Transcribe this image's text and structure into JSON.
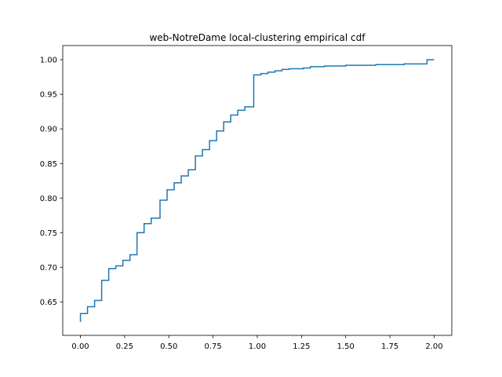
{
  "chart_data": {
    "type": "line",
    "drawstyle": "steps-post",
    "title": "web-NotreDame local-clustering empirical cdf",
    "xlabel": "",
    "ylabel": "",
    "xlim": [
      -0.1,
      2.1
    ],
    "ylim": [
      0.6015,
      1.0205
    ],
    "x_ticks": [
      0.0,
      0.25,
      0.5,
      0.75,
      1.0,
      1.25,
      1.5,
      1.75,
      2.0
    ],
    "x_tick_labels": [
      "0.00",
      "0.25",
      "0.50",
      "0.75",
      "1.00",
      "1.25",
      "1.50",
      "1.75",
      "2.00"
    ],
    "y_ticks": [
      0.65,
      0.7,
      0.75,
      0.8,
      0.85,
      0.9,
      0.95,
      1.0
    ],
    "y_tick_labels": [
      "0.65",
      "0.70",
      "0.75",
      "0.80",
      "0.85",
      "0.90",
      "0.95",
      "1.00"
    ],
    "grid": false,
    "legend": "none",
    "color": "#1f77b4",
    "series": [
      {
        "x": [
          0.0,
          0.0,
          0.04,
          0.08,
          0.12,
          0.16,
          0.2,
          0.24,
          0.28,
          0.32,
          0.36,
          0.4,
          0.45,
          0.49,
          0.53,
          0.57,
          0.61,
          0.65,
          0.69,
          0.73,
          0.77,
          0.81,
          0.85,
          0.89,
          0.93,
          0.98,
          1.02,
          1.06,
          1.1,
          1.14,
          1.18,
          1.26,
          1.3,
          1.38,
          1.5,
          1.67,
          1.83,
          1.96,
          2.0
        ],
        "y": [
          0.621,
          0.633,
          0.643,
          0.652,
          0.681,
          0.698,
          0.702,
          0.71,
          0.718,
          0.75,
          0.763,
          0.771,
          0.797,
          0.812,
          0.822,
          0.832,
          0.841,
          0.861,
          0.87,
          0.883,
          0.897,
          0.91,
          0.92,
          0.927,
          0.932,
          0.978,
          0.98,
          0.982,
          0.984,
          0.986,
          0.987,
          0.988,
          0.99,
          0.991,
          0.992,
          0.993,
          0.994,
          1.0,
          1.0
        ]
      }
    ]
  }
}
